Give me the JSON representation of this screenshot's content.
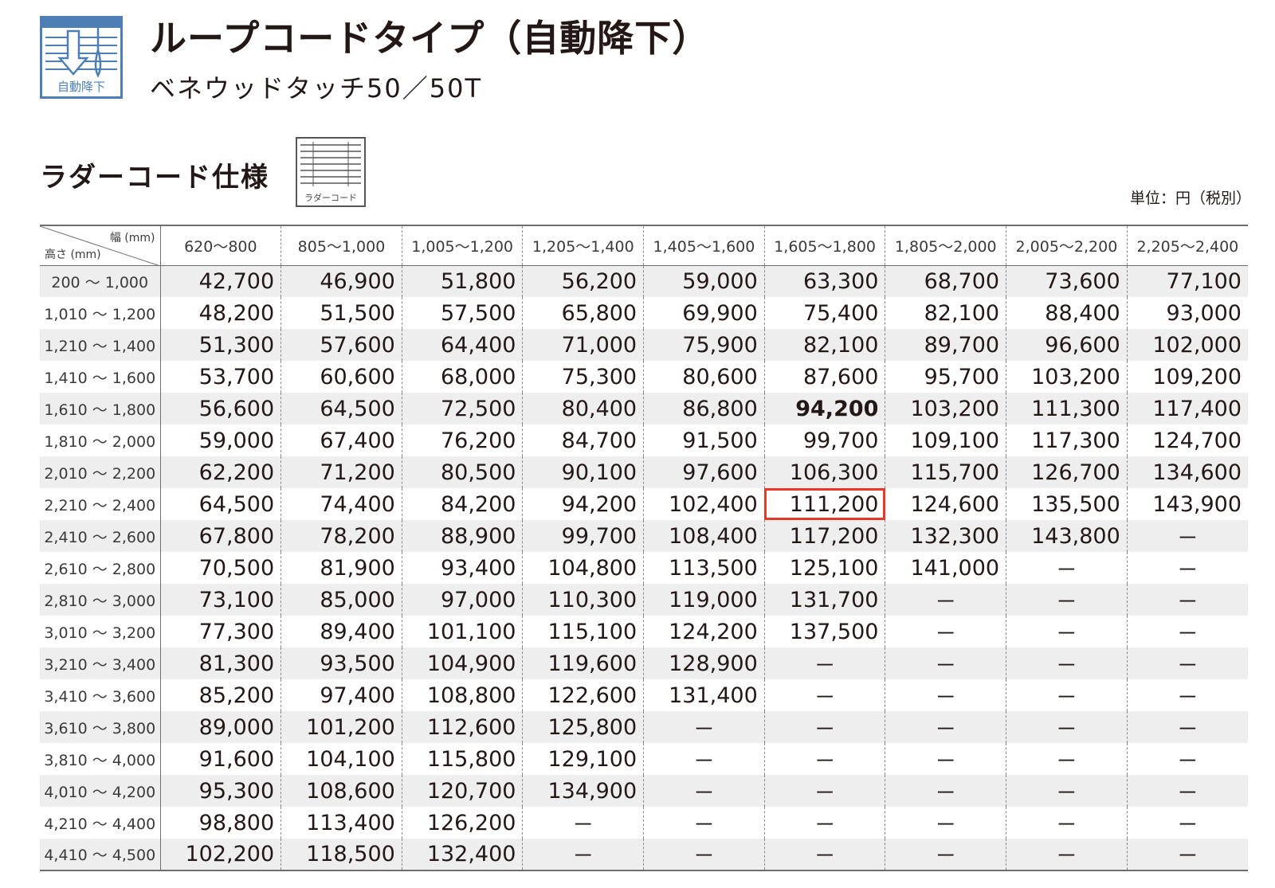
{
  "header": {
    "badge_label": "自動降下",
    "title": "ループコードタイプ（自動降下）",
    "subtitle": "ベネウッドタッチ50／50T"
  },
  "spec": {
    "heading": "ラダーコード仕様",
    "icon_label": "ラダーコード",
    "unit": "単位：円（税別）"
  },
  "table": {
    "corner_width_label": "幅 (mm)",
    "corner_height_label": "高さ (mm)",
    "width_ranges": [
      "620～800",
      "805～1,000",
      "1,005～1,200",
      "1,205～1,400",
      "1,405～1,600",
      "1,605～1,800",
      "1,805～2,000",
      "2,005～2,200",
      "2,205～2,400"
    ],
    "rows": [
      {
        "height": "200 ～ 1,000",
        "prices": [
          "42,700",
          "46,900",
          "51,800",
          "56,200",
          "59,000",
          "63,300",
          "68,700",
          "73,600",
          "77,100"
        ]
      },
      {
        "height": "1,010 ～ 1,200",
        "prices": [
          "48,200",
          "51,500",
          "57,500",
          "65,800",
          "69,900",
          "75,400",
          "82,100",
          "88,400",
          "93,000"
        ]
      },
      {
        "height": "1,210 ～ 1,400",
        "prices": [
          "51,300",
          "57,600",
          "64,400",
          "71,000",
          "75,900",
          "82,100",
          "89,700",
          "96,600",
          "102,000"
        ]
      },
      {
        "height": "1,410 ～ 1,600",
        "prices": [
          "53,700",
          "60,600",
          "68,000",
          "75,300",
          "80,600",
          "87,600",
          "95,700",
          "103,200",
          "109,200"
        ]
      },
      {
        "height": "1,610 ～ 1,800",
        "prices": [
          "56,600",
          "64,500",
          "72,500",
          "80,400",
          "86,800",
          "94,200",
          "103,200",
          "111,300",
          "117,400"
        ]
      },
      {
        "height": "1,810 ～ 2,000",
        "prices": [
          "59,000",
          "67,400",
          "76,200",
          "84,700",
          "91,500",
          "99,700",
          "109,100",
          "117,300",
          "124,700"
        ]
      },
      {
        "height": "2,010 ～ 2,200",
        "prices": [
          "62,200",
          "71,200",
          "80,500",
          "90,100",
          "97,600",
          "106,300",
          "115,700",
          "126,700",
          "134,600"
        ]
      },
      {
        "height": "2,210 ～ 2,400",
        "prices": [
          "64,500",
          "74,400",
          "84,200",
          "94,200",
          "102,400",
          "111,200",
          "124,600",
          "135,500",
          "143,900"
        ]
      },
      {
        "height": "2,410 ～ 2,600",
        "prices": [
          "67,800",
          "78,200",
          "88,900",
          "99,700",
          "108,400",
          "117,200",
          "132,300",
          "143,800",
          "－"
        ]
      },
      {
        "height": "2,610 ～ 2,800",
        "prices": [
          "70,500",
          "81,900",
          "93,400",
          "104,800",
          "113,500",
          "125,100",
          "141,000",
          "－",
          "－"
        ]
      },
      {
        "height": "2,810 ～ 3,000",
        "prices": [
          "73,100",
          "85,000",
          "97,000",
          "110,300",
          "119,000",
          "131,700",
          "－",
          "－",
          "－"
        ]
      },
      {
        "height": "3,010 ～ 3,200",
        "prices": [
          "77,300",
          "89,400",
          "101,100",
          "115,100",
          "124,200",
          "137,500",
          "－",
          "－",
          "－"
        ]
      },
      {
        "height": "3,210 ～ 3,400",
        "prices": [
          "81,300",
          "93,500",
          "104,900",
          "119,600",
          "128,900",
          "－",
          "－",
          "－",
          "－"
        ]
      },
      {
        "height": "3,410 ～ 3,600",
        "prices": [
          "85,200",
          "97,400",
          "108,800",
          "122,600",
          "131,400",
          "－",
          "－",
          "－",
          "－"
        ]
      },
      {
        "height": "3,610 ～ 3,800",
        "prices": [
          "89,000",
          "101,200",
          "112,600",
          "125,800",
          "－",
          "－",
          "－",
          "－",
          "－"
        ]
      },
      {
        "height": "3,810 ～ 4,000",
        "prices": [
          "91,600",
          "104,100",
          "115,800",
          "129,100",
          "－",
          "－",
          "－",
          "－",
          "－"
        ]
      },
      {
        "height": "4,010 ～ 4,200",
        "prices": [
          "95,300",
          "108,600",
          "120,700",
          "134,900",
          "－",
          "－",
          "－",
          "－",
          "－"
        ]
      },
      {
        "height": "4,210 ～ 4,400",
        "prices": [
          "98,800",
          "113,400",
          "126,200",
          "－",
          "－",
          "－",
          "－",
          "－",
          "－"
        ]
      },
      {
        "height": "4,410 ～ 4,500",
        "prices": [
          "102,200",
          "118,500",
          "132,400",
          "－",
          "－",
          "－",
          "－",
          "－",
          "－"
        ]
      }
    ],
    "blue_cells": [
      [
        6,
        8
      ],
      [
        7,
        7
      ],
      [
        7,
        8
      ],
      [
        8,
        6
      ],
      [
        8,
        7
      ],
      [
        9,
        6
      ],
      [
        10,
        5
      ],
      [
        11,
        5
      ],
      [
        12,
        4
      ],
      [
        13,
        4
      ],
      [
        14,
        3
      ],
      [
        15,
        3
      ],
      [
        16,
        3
      ],
      [
        17,
        2
      ],
      [
        18,
        2
      ]
    ],
    "bold_cell": [
      4,
      5
    ],
    "highlighted_cell": [
      7,
      5
    ],
    "colors": {
      "accent_blue": "#1c84b4",
      "badge_blue": "#4d7fb6",
      "highlight_red": "#e83828",
      "row_shade": "#eeeeef"
    }
  }
}
